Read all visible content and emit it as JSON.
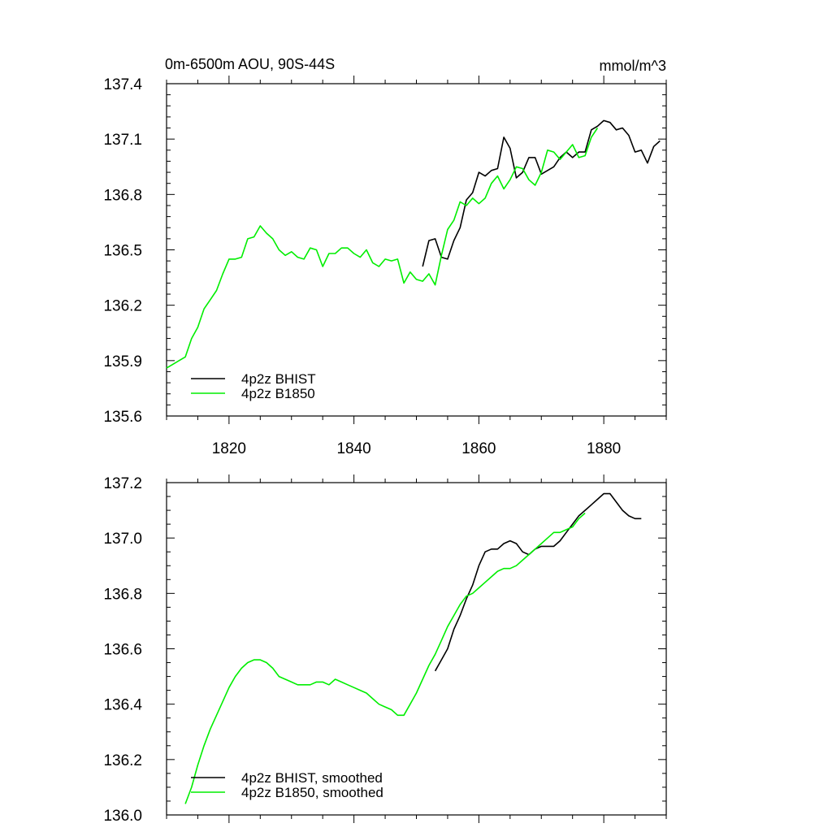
{
  "chart_data": [
    {
      "type": "line",
      "title": "0m-6500m AOU, 90S-44S",
      "units": "mmol/m^3",
      "xlim": [
        1810,
        1890
      ],
      "ylim": [
        135.6,
        137.4
      ],
      "xticks": [
        1820,
        1840,
        1860,
        1880
      ],
      "yticks": [
        135.6,
        135.9,
        136.2,
        136.5,
        136.8,
        137.1,
        137.4
      ],
      "xtick_labels": [
        "1820",
        "1840",
        "1860",
        "1880"
      ],
      "ytick_labels": [
        "135.6",
        "135.9",
        "136.2",
        "136.5",
        "136.8",
        "137.1",
        "137.4"
      ],
      "legend_position": "bottom-left",
      "series": [
        {
          "name": "4p2z BHIST",
          "color": "#000000",
          "x": [
            1851,
            1852,
            1853,
            1854,
            1855,
            1856,
            1857,
            1858,
            1859,
            1860,
            1861,
            1862,
            1863,
            1864,
            1865,
            1866,
            1867,
            1868,
            1869,
            1870,
            1871,
            1872,
            1873,
            1874,
            1875,
            1876,
            1877,
            1878,
            1879,
            1880,
            1881,
            1882,
            1883,
            1884,
            1885,
            1886,
            1887,
            1888,
            1889
          ],
          "y": [
            136.41,
            136.55,
            136.56,
            136.46,
            136.45,
            136.55,
            136.62,
            136.77,
            136.81,
            136.92,
            136.9,
            136.93,
            136.94,
            137.11,
            137.05,
            136.89,
            136.92,
            137.0,
            137.0,
            136.91,
            136.93,
            136.95,
            137.0,
            137.03,
            137.0,
            137.03,
            137.03,
            137.15,
            137.17,
            137.2,
            137.19,
            137.15,
            137.16,
            137.12,
            137.03,
            137.04,
            136.97,
            137.06,
            137.09
          ]
        },
        {
          "name": "4p2z B1850",
          "color": "#00ee00",
          "x": [
            1810,
            1811,
            1812,
            1813,
            1814,
            1815,
            1816,
            1817,
            1818,
            1819,
            1820,
            1821,
            1822,
            1823,
            1824,
            1825,
            1826,
            1827,
            1828,
            1829,
            1830,
            1831,
            1832,
            1833,
            1834,
            1835,
            1836,
            1837,
            1838,
            1839,
            1840,
            1841,
            1842,
            1843,
            1844,
            1845,
            1846,
            1847,
            1848,
            1849,
            1850,
            1851,
            1852,
            1853,
            1854,
            1855,
            1856,
            1857,
            1858,
            1859,
            1860,
            1861,
            1862,
            1863,
            1864,
            1865,
            1866,
            1867,
            1868,
            1869,
            1870,
            1871,
            1872,
            1873,
            1874,
            1875,
            1876,
            1877,
            1878,
            1879
          ],
          "y": [
            135.86,
            135.88,
            135.9,
            135.92,
            136.02,
            136.08,
            136.18,
            136.23,
            136.28,
            136.37,
            136.45,
            136.45,
            136.46,
            136.56,
            136.57,
            136.63,
            136.59,
            136.56,
            136.5,
            136.47,
            136.49,
            136.46,
            136.45,
            136.51,
            136.5,
            136.41,
            136.48,
            136.48,
            136.51,
            136.51,
            136.48,
            136.46,
            136.5,
            136.43,
            136.41,
            136.45,
            136.44,
            136.45,
            136.32,
            136.38,
            136.34,
            136.33,
            136.37,
            136.31,
            136.47,
            136.61,
            136.66,
            136.76,
            136.74,
            136.78,
            136.75,
            136.78,
            136.86,
            136.9,
            136.83,
            136.88,
            136.95,
            136.94,
            136.88,
            136.85,
            136.92,
            137.04,
            137.03,
            136.99,
            137.03,
            137.07,
            137.0,
            137.01,
            137.11,
            137.16
          ]
        }
      ]
    },
    {
      "type": "line",
      "title": "",
      "xlim": [
        1810,
        1890
      ],
      "ylim": [
        136.0,
        137.2
      ],
      "yticks": [
        136.0,
        136.2,
        136.4,
        136.6,
        136.8,
        137.0,
        137.2
      ],
      "ytick_labels": [
        "136.0",
        "136.2",
        "136.4",
        "136.6",
        "136.8",
        "137.0",
        "137.2"
      ],
      "legend_position": "bottom-left",
      "series": [
        {
          "name": "4p2z BHIST, smoothed",
          "color": "#000000",
          "x": [
            1853,
            1854,
            1855,
            1856,
            1857,
            1858,
            1859,
            1860,
            1861,
            1862,
            1863,
            1864,
            1865,
            1866,
            1867,
            1868,
            1869,
            1870,
            1871,
            1872,
            1873,
            1874,
            1875,
            1876,
            1877,
            1878,
            1879,
            1880,
            1881,
            1882,
            1883,
            1884,
            1885,
            1886
          ],
          "y": [
            136.52,
            136.56,
            136.6,
            136.67,
            136.72,
            136.78,
            136.83,
            136.9,
            136.95,
            136.96,
            136.96,
            136.98,
            136.99,
            136.98,
            136.95,
            136.94,
            136.96,
            136.97,
            136.97,
            136.97,
            136.99,
            137.02,
            137.05,
            137.08,
            137.1,
            137.12,
            137.14,
            137.16,
            137.16,
            137.13,
            137.1,
            137.08,
            137.07,
            137.07
          ]
        },
        {
          "name": "4p2z B1850, smoothed",
          "color": "#00ee00",
          "x": [
            1813,
            1814,
            1815,
            1816,
            1817,
            1818,
            1819,
            1820,
            1821,
            1822,
            1823,
            1824,
            1825,
            1826,
            1827,
            1828,
            1829,
            1830,
            1831,
            1832,
            1833,
            1834,
            1835,
            1836,
            1837,
            1838,
            1839,
            1840,
            1841,
            1842,
            1843,
            1844,
            1845,
            1846,
            1847,
            1848,
            1849,
            1850,
            1851,
            1852,
            1853,
            1854,
            1855,
            1856,
            1857,
            1858,
            1859,
            1860,
            1861,
            1862,
            1863,
            1864,
            1865,
            1866,
            1867,
            1868,
            1869,
            1870,
            1871,
            1872,
            1873,
            1874,
            1875,
            1876,
            1877
          ],
          "y": [
            136.04,
            136.1,
            136.18,
            136.25,
            136.31,
            136.36,
            136.41,
            136.46,
            136.5,
            136.53,
            136.55,
            136.56,
            136.56,
            136.55,
            136.53,
            136.5,
            136.49,
            136.48,
            136.47,
            136.47,
            136.47,
            136.48,
            136.48,
            136.47,
            136.49,
            136.48,
            136.47,
            136.46,
            136.45,
            136.44,
            136.42,
            136.4,
            136.39,
            136.38,
            136.36,
            136.36,
            136.4,
            136.44,
            136.49,
            136.54,
            136.58,
            136.63,
            136.68,
            136.72,
            136.76,
            136.79,
            136.8,
            136.82,
            136.84,
            136.86,
            136.88,
            136.89,
            136.89,
            136.9,
            136.92,
            136.94,
            136.96,
            136.98,
            137.0,
            137.02,
            137.02,
            137.03,
            137.04,
            137.07,
            137.09
          ]
        }
      ]
    }
  ]
}
